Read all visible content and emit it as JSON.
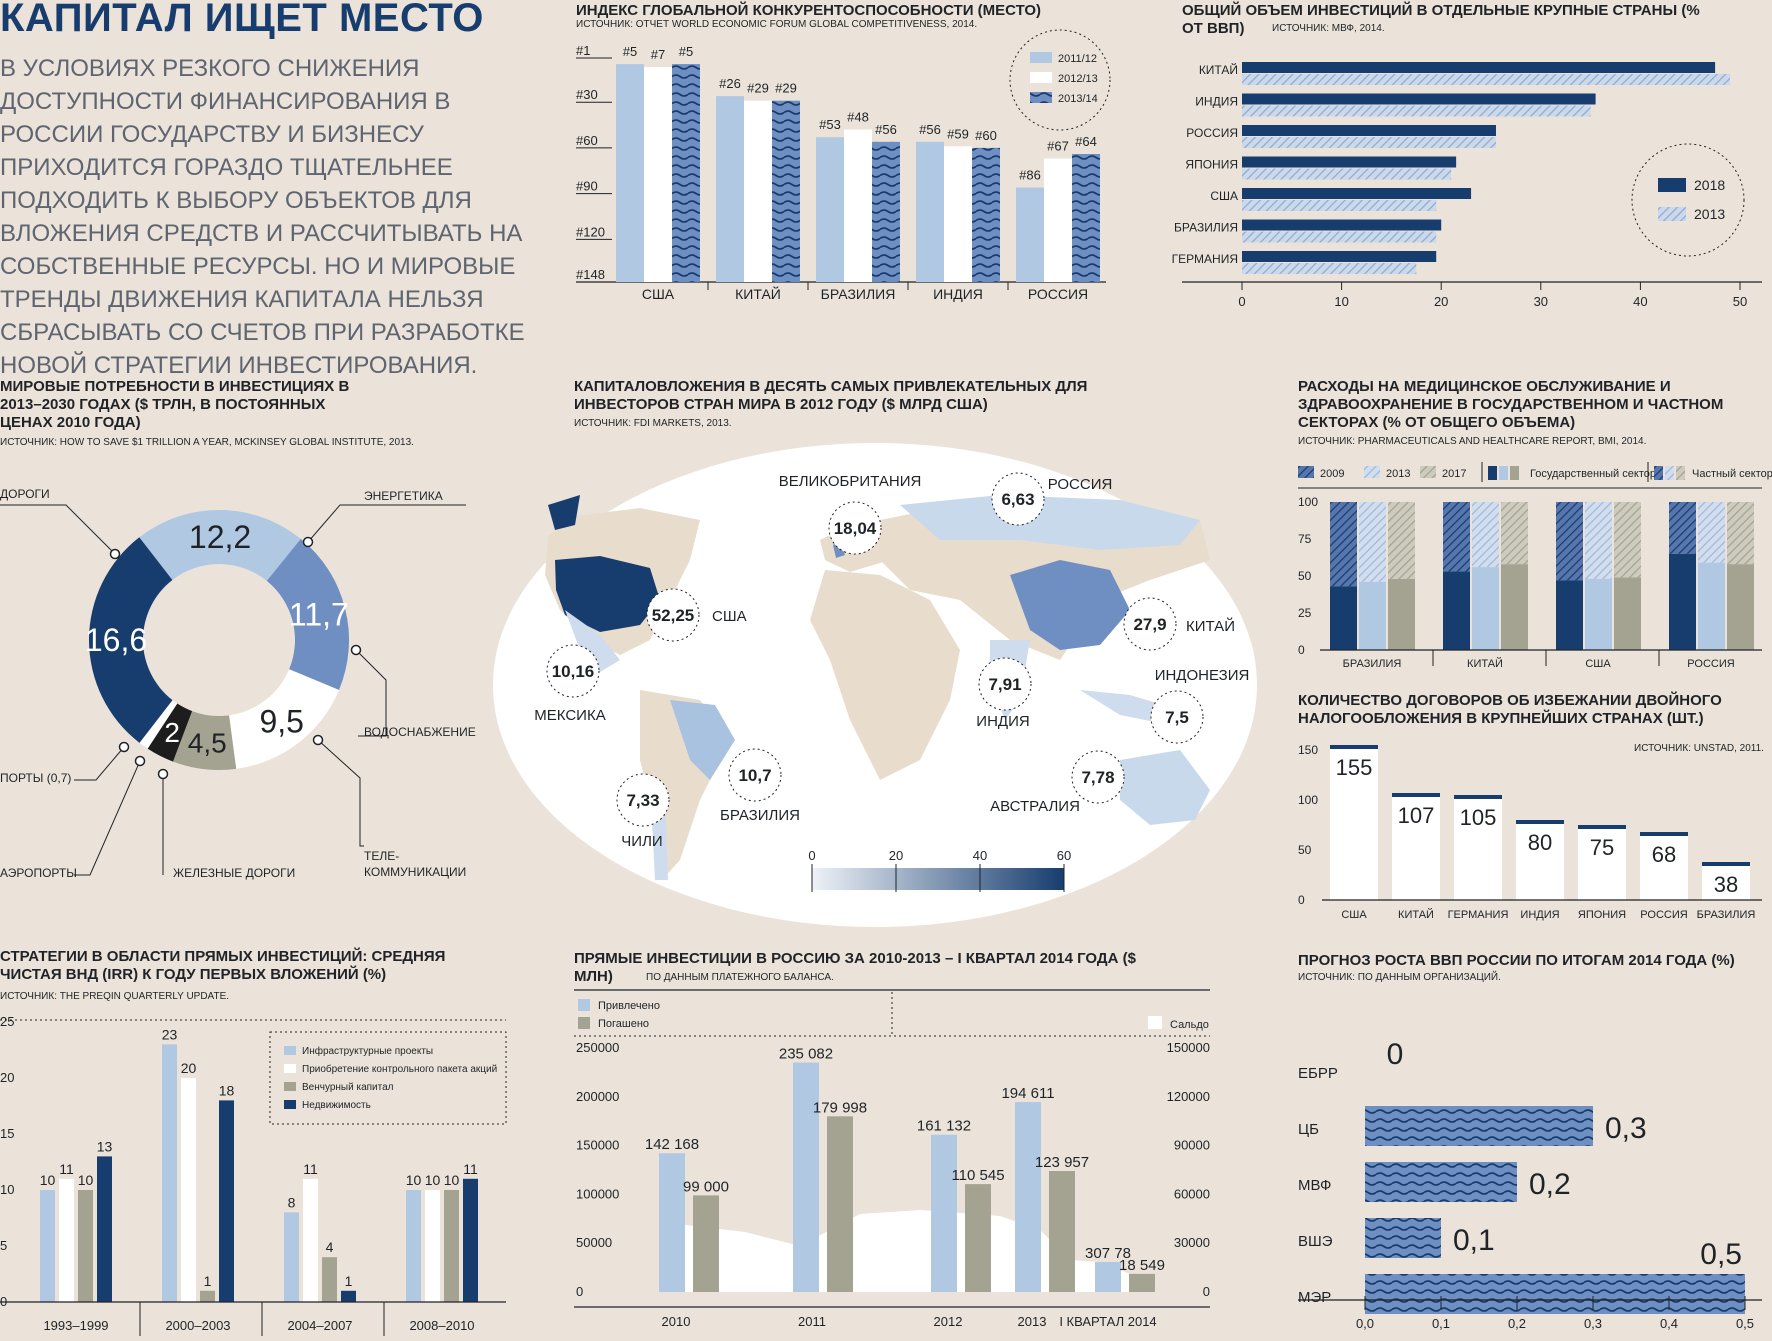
{
  "intro": {
    "title": "КАПИТАЛ ИЩЕТ МЕСТО",
    "text": "В УСЛОВИЯХ РЕЗКОГО СНИЖЕНИЯ ДОСТУПНОСТИ ФИНАНСИРОВАНИЯ В РОССИИ ГОСУДАРСТВУ И БИЗНЕСУ ПРИХОДИТСЯ ГОРАЗДО ТЩАТЕЛЬНЕЕ ПОДХОДИТЬ К ВЫБОРУ ОБЪЕКТОВ ДЛЯ ВЛОЖЕНИЯ СРЕДСТВ И РАССЧИТЫВАТЬ НА СОБСТВЕННЫЕ РЕСУРСЫ. НО И МИРОВЫЕ ТРЕНДЫ ДВИЖЕНИЯ КАПИТАЛА НЕЛЬЗЯ СБРАСЫВАТЬ СО СЧЕТОВ ПРИ РАЗРАБОТКЕ НОВОЙ СТРАТЕГИИ ИНВЕСТИРОВАНИЯ."
  },
  "colors": {
    "light": "#b1c8e3",
    "mid": "#6f8fc3",
    "dark": "#173d6e",
    "gray": "#a4a391",
    "black": "#1d1d1d",
    "bg": "#ebe3d9",
    "white": "#ffffff"
  },
  "chart_data": [
    {
      "id": "competitiveness",
      "type": "bar",
      "title": "ИНДЕКС ГЛОБАЛЬНОЙ КОНКУРЕНТОСПОСОБНОСТИ (МЕСТО)",
      "source": "ИСТОЧНИК: ОТЧЕТ WORLD ECONOMIC FORUM GLOBAL COMPETITIVENESS, 2014.",
      "categories": [
        "США",
        "КИТАЙ",
        "БРАЗИЛИЯ",
        "ИНДИЯ",
        "РОССИЯ"
      ],
      "series": [
        {
          "name": "2011/12",
          "values": [
            5,
            26,
            53,
            56,
            86
          ],
          "labels": [
            "#5",
            "#26",
            "#53",
            "#56",
            "#86"
          ]
        },
        {
          "name": "2012/13",
          "values": [
            7,
            29,
            48,
            59,
            67
          ],
          "labels": [
            "#7",
            "#29",
            "#48",
            "#59",
            "#67"
          ]
        },
        {
          "name": "2013/14",
          "values": [
            5,
            29,
            56,
            60,
            64
          ],
          "labels": [
            "#5",
            "#29",
            "#56",
            "#60",
            "#64"
          ]
        }
      ],
      "y_ticks": [
        "#1",
        "#30",
        "#60",
        "#90",
        "#120",
        "#148"
      ],
      "y_tick_values": [
        1,
        30,
        60,
        90,
        120,
        148
      ],
      "ylim": [
        1,
        148
      ]
    },
    {
      "id": "investment-gdp",
      "type": "bar",
      "orientation": "horizontal",
      "title": "ОБЩИЙ ОБЪЕМ ИНВЕСТИЦИЙ В ОТДЕЛЬНЫЕ КРУПНЫЕ СТРАНЫ (% ОТ ВВП)",
      "source": "ИСТОЧНИК: МВФ, 2014.",
      "categories": [
        "КИТАЙ",
        "ИНДИЯ",
        "РОССИЯ",
        "ЯПОНИЯ",
        "США",
        "БРАЗИЛИЯ",
        "ГЕРМАНИЯ"
      ],
      "series": [
        {
          "name": "2018",
          "values": [
            47.5,
            35.5,
            25.5,
            21.5,
            23.0,
            20.0,
            19.5
          ]
        },
        {
          "name": "2013",
          "values": [
            49.0,
            35.0,
            25.5,
            21.0,
            19.5,
            19.5,
            17.5
          ]
        }
      ],
      "x_ticks": [
        "0",
        "10",
        "20",
        "30",
        "40",
        "50"
      ],
      "xlim": [
        0,
        50
      ]
    },
    {
      "id": "world-needs",
      "type": "pie",
      "title": "МИРОВЫЕ ПОТРЕБНОСТИ В ИНВЕСТИЦИЯХ В 2013–2030 ГОДАХ ($ ТРЛН, В ПОСТОЯННЫХ ЦЕНАХ 2010 ГОДА)",
      "source": "ИСТОЧНИК: HOW TO SAVE $1 TRILLION A YEAR, MCKINSEY GLOBAL INSTITUTE, 2013.",
      "slices": [
        {
          "name": "ЭНЕРГЕТИКА",
          "value": 12.2,
          "label": "12,2",
          "color": "#b1c8e3"
        },
        {
          "name": "ВОДОСНАБЖЕНИЕ",
          "value": 11.7,
          "label": "11,7",
          "color": "#6f8fc3"
        },
        {
          "name": "ТЕЛЕ-КОММУНИКАЦИИ",
          "value": 9.5,
          "label": "9,5",
          "color": "#ffffff"
        },
        {
          "name": "ЖЕЛЕЗНЫЕ ДОРОГИ",
          "value": 4.5,
          "label": "4,5",
          "color": "#a4a391"
        },
        {
          "name": "АЭРОПОРТЫ",
          "value": 2.0,
          "label": "2",
          "color": "#1d1d1d"
        },
        {
          "name": "ПОРТЫ (0,7)",
          "value": 0.7,
          "label": "",
          "color": "#ffffff"
        },
        {
          "name": "ДОРОГИ",
          "value": 16.6,
          "label": "16,6",
          "color": "#173d6e"
        }
      ]
    },
    {
      "id": "fdi-map",
      "type": "map",
      "title": "КАПИТАЛОВЛОЖЕНИЯ В ДЕСЯТЬ САМЫХ ПРИВЛЕКАТЕЛЬНЫХ ДЛЯ ИНВЕСТОРОВ СТРАН МИРА В 2012 ГОДУ ($ МЛРД США)",
      "source": "ИСТОЧНИК: FDI MARKETS, 2013.",
      "points": [
        {
          "country": "США",
          "value": "52,25"
        },
        {
          "country": "КИТАЙ",
          "value": "27,9"
        },
        {
          "country": "ВЕЛИКОБРИТАНИЯ",
          "value": "18,04"
        },
        {
          "country": "БРАЗИЛИЯ",
          "value": "10,7"
        },
        {
          "country": "МЕКСИКА",
          "value": "10,16"
        },
        {
          "country": "ИНДИЯ",
          "value": "7,91"
        },
        {
          "country": "АВСТРАЛИЯ",
          "value": "7,78"
        },
        {
          "country": "ИНДОНЕЗИЯ",
          "value": "7,5"
        },
        {
          "country": "ЧИЛИ",
          "value": "7,33"
        },
        {
          "country": "РОССИЯ",
          "value": "6,63"
        }
      ],
      "scale_ticks": [
        "0",
        "20",
        "40",
        "60"
      ]
    },
    {
      "id": "health-spend",
      "type": "bar",
      "stacked": true,
      "title": "РАСХОДЫ НА МЕДИЦИНСКОЕ ОБСЛУЖИВАНИЕ И ЗДРАВООХРАНЕНИЕ В ГОСУДАРСТВЕННОМ И ЧАСТНОМ СЕКТОРАХ (% ОТ ОБЩЕГО ОБЪЕМА)",
      "source": "ИСТОЧНИК: PHARMACEUTICALS AND HEALTHCARE REPORT, BMI, 2014.",
      "legend": [
        "2009",
        "2013",
        "2017",
        "Государственный сектор",
        "Частный сектор"
      ],
      "categories": [
        "БРАЗИЛИЯ",
        "КИТАЙ",
        "США",
        "РОССИЯ"
      ],
      "series_years": [
        "2009",
        "2013",
        "2017"
      ],
      "public_share": [
        [
          43,
          46,
          48
        ],
        [
          53,
          56,
          58
        ],
        [
          47,
          48,
          49
        ],
        [
          65,
          59,
          58
        ]
      ],
      "y_ticks": [
        "100",
        "75",
        "50",
        "25",
        "0"
      ],
      "ylim": [
        0,
        100
      ]
    },
    {
      "id": "tax-treaties",
      "type": "bar",
      "title": "КОЛИЧЕСТВО ДОГОВОРОВ ОБ ИЗБЕЖАНИИ ДВОЙНОГО НАЛОГООБЛОЖЕНИЯ В КРУПНЕЙШИХ СТРАНАХ (ШТ.)",
      "source": "ИСТОЧНИК: UNSTAD, 2011.",
      "categories": [
        "США",
        "КИТАЙ",
        "ГЕРМАНИЯ",
        "ИНДИЯ",
        "ЯПОНИЯ",
        "РОССИЯ",
        "БРАЗИЛИЯ"
      ],
      "values": [
        155,
        107,
        105,
        80,
        75,
        68,
        38
      ],
      "y_ticks": [
        "150",
        "100",
        "50",
        "0"
      ],
      "ylim": [
        0,
        150
      ]
    },
    {
      "id": "pe-irr",
      "type": "bar",
      "title": "СТРАТЕГИИ В ОБЛАСТИ ПРЯМЫХ ИНВЕСТИЦИЙ: СРЕДНЯЯ ЧИСТАЯ ВНД (IRR) К ГОДУ ПЕРВЫХ ВЛОЖЕНИЙ (%)",
      "source": "ИСТОЧНИК: THE PREQIN QUARTERLY UPDATE.",
      "categories": [
        "1993–1999",
        "2000–2003",
        "2004–2007",
        "2008–2010"
      ],
      "series": [
        {
          "name": "Инфраструктурные проекты",
          "values": [
            10,
            23,
            8,
            10
          ]
        },
        {
          "name": "Приобретение контрольного пакета акций",
          "values": [
            11,
            20,
            11,
            10
          ]
        },
        {
          "name": "Венчурный капитал",
          "values": [
            10,
            1,
            4,
            10
          ]
        },
        {
          "name": "Недвижимость",
          "values": [
            13,
            18,
            1,
            11
          ]
        }
      ],
      "y_ticks": [
        "25",
        "20",
        "15",
        "10",
        "5",
        "0"
      ],
      "ylim": [
        0,
        25
      ]
    },
    {
      "id": "fdi-russia",
      "type": "bar",
      "title": "ПРЯМЫЕ ИНВЕСТИЦИИ В РОССИЮ ЗА 2010-2013 – I КВАРТАЛ 2014 ГОДА ($ МЛН)",
      "source": "ПО ДАННЫМ ПЛАТЕЖНОГО БАЛАНСА.",
      "categories": [
        "2010",
        "2011",
        "2012",
        "2013",
        "I КВАРТАЛ 2014"
      ],
      "series": [
        {
          "name": "Привлечено",
          "values": [
            142168,
            235082,
            161132,
            194611,
            30778
          ],
          "labels": [
            "142 168",
            "235 082",
            "161 132",
            "194 611",
            "307 78"
          ]
        },
        {
          "name": "Погашено",
          "values": [
            99000,
            179998,
            110545,
            123957,
            18549
          ],
          "labels": [
            "99 000",
            "179 998",
            "110 545",
            "123 957",
            "18 549"
          ]
        }
      ],
      "balance_name": "Сальдо",
      "y_left_ticks": [
        "250000",
        "200000",
        "150000",
        "100000",
        "50000",
        "0"
      ],
      "y_right_ticks": [
        "150000",
        "120000",
        "90000",
        "60000",
        "30000",
        "0"
      ],
      "ylim": [
        0,
        250000
      ]
    },
    {
      "id": "gdp-forecast",
      "type": "bar",
      "orientation": "horizontal",
      "title": "ПРОГНОЗ РОСТА ВВП РОССИИ ПО ИТОГАМ 2014 ГОДА (%)",
      "source": "ИСТОЧНИК: ПО ДАННЫМ ОРГАНИЗАЦИЙ.",
      "categories": [
        "ЕБРР",
        "ЦБ",
        "МВФ",
        "ВШЭ",
        "МЭР"
      ],
      "values": [
        0,
        0.3,
        0.2,
        0.1,
        0.5
      ],
      "labels": [
        "0",
        "0,3",
        "0,2",
        "0,1",
        "0,5"
      ],
      "x_ticks": [
        "0,0",
        "0,1",
        "0,2",
        "0,3",
        "0,4",
        "0,5"
      ],
      "xlim": [
        0,
        0.5
      ]
    }
  ]
}
